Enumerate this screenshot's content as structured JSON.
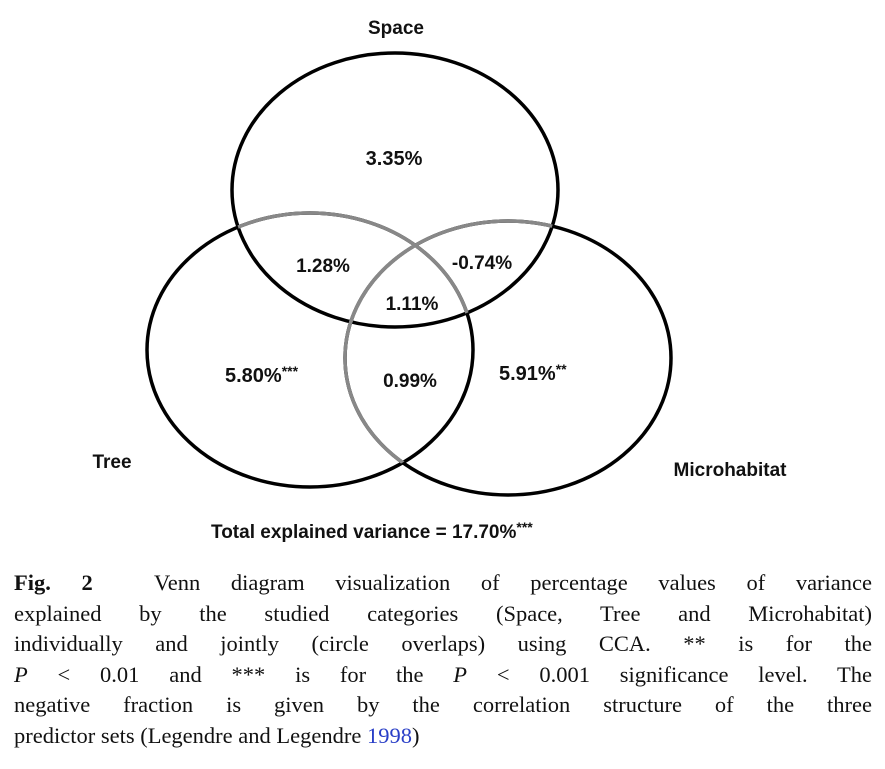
{
  "diagram": {
    "sets": {
      "space": "Space",
      "tree": "Tree",
      "microhabitat": "Microhabitat"
    },
    "regions": {
      "space_only": "3.35%",
      "space_tree": "1.28%",
      "space_micro": "-0.74%",
      "all_three": "1.11%",
      "tree_only": "5.80%",
      "tree_only_sig": "***",
      "tree_micro": "0.99%",
      "micro_only": "5.91%",
      "micro_only_sig": "**"
    },
    "total": "Total explained variance = 17.70%",
    "total_sig": "***"
  },
  "caption": {
    "fig_label": "Fig. 2",
    "line1": "Venn diagram visualization of percentage values of variance",
    "line2": "explained by the studied categories (Space, Tree and Microhabitat)",
    "line3": "individually and jointly (circle overlaps) using CCA. ** is for the",
    "line4_p1": "P",
    "line4_t1": " < 0.01  and  ***  is  for  the ",
    "line4_p2": "P",
    "line4_t2": " < 0.001  significance  level.  The",
    "line5": "negative fraction is given by the correlation structure of the three",
    "line6": "predictor sets (Legendre and Legendre ",
    "line6_year": "1998",
    "line6_end": ")"
  }
}
